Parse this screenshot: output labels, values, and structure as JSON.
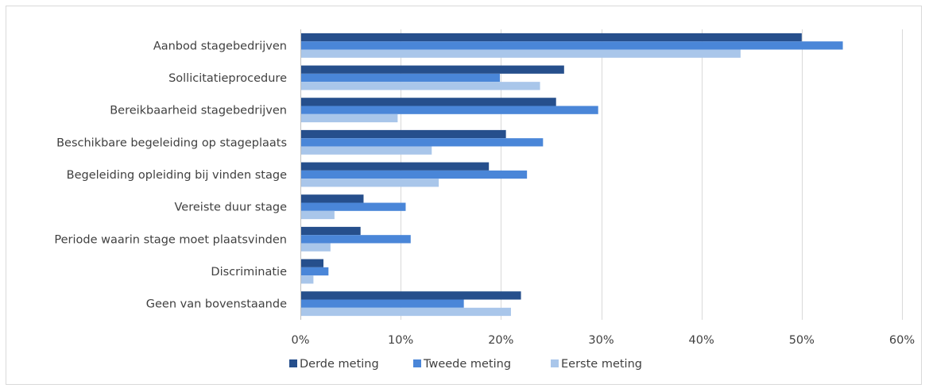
{
  "chart_data": {
    "type": "bar",
    "orientation": "horizontal",
    "categories": [
      "Aanbod stagebedrijven",
      "Sollicitatieprocedure",
      "Bereikbaarheid stagebedrijven",
      "Beschikbare begeleiding op stageplaats",
      "Begeleiding opleiding bij vinden stage",
      "Vereiste duur stage",
      "Periode waarin stage moet plaatsvinden",
      "Discriminatie",
      "Geen van bovenstaande"
    ],
    "series": [
      {
        "name": "Derde meting",
        "color": "#264f8c",
        "values": [
          50,
          26.3,
          25.5,
          20.5,
          18.8,
          6.3,
          6.0,
          2.3,
          22.0
        ]
      },
      {
        "name": "Tweede meting",
        "color": "#4a86d8",
        "values": [
          54.1,
          19.9,
          29.7,
          24.2,
          22.6,
          10.5,
          11.0,
          2.8,
          16.3
        ]
      },
      {
        "name": "Eerste meting",
        "color": "#a9c6ea",
        "values": [
          43.9,
          23.9,
          9.7,
          13.1,
          13.8,
          3.4,
          3.0,
          1.3,
          21.0
        ]
      }
    ],
    "xlim": [
      0,
      60
    ],
    "ticks": [
      "0%",
      "10%",
      "20%",
      "30%",
      "40%",
      "50%",
      "60%"
    ],
    "tick_values": [
      0,
      10,
      20,
      30,
      40,
      50,
      60
    ],
    "grid": true,
    "legend": "bottom"
  }
}
